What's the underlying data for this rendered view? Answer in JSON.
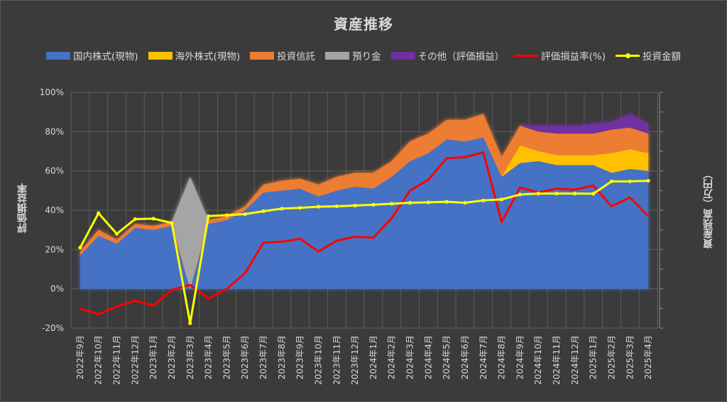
{
  "chart_data": {
    "type": "area",
    "title": "資産推移",
    "ylabel": "評価損益率",
    "y2label": "資産残高（万円）",
    "ylim": [
      -0.2,
      1.0
    ],
    "yticks": [
      "-20%",
      "0%",
      "20%",
      "40%",
      "60%",
      "80%",
      "100%"
    ],
    "categories": [
      "2022年9月",
      "2022年10月",
      "2022年11月",
      "2022年12月",
      "2023年1月",
      "2023年2月",
      "2023年3月",
      "2023年4月",
      "2023年5月",
      "2023年6月",
      "2023年7月",
      "2023年8月",
      "2023年9月",
      "2023年10月",
      "2023年11月",
      "2023年12月",
      "2024年1月",
      "2024年2月",
      "2024年3月",
      "2024年4月",
      "2024年5月",
      "2024年6月",
      "2024年7月",
      "2024年8月",
      "2024年9月",
      "2024年10月",
      "2024年11月",
      "2024年12月",
      "2025年1月",
      "2025年2月",
      "2025年3月",
      "2025年4月"
    ],
    "stacked_series": [
      {
        "name": "国内株式(現物)",
        "color": "#4472c4",
        "values": [
          0.17,
          0.27,
          0.23,
          0.31,
          0.3,
          0.32,
          0.0,
          0.33,
          0.35,
          0.4,
          0.49,
          0.5,
          0.51,
          0.47,
          0.5,
          0.52,
          0.51,
          0.57,
          0.65,
          0.69,
          0.76,
          0.75,
          0.77,
          0.57,
          0.64,
          0.65,
          0.63,
          0.63,
          0.63,
          0.59,
          0.61,
          0.6
        ]
      },
      {
        "name": "海外株式(現物)",
        "color": "#ffc000",
        "values": [
          0,
          0,
          0,
          0,
          0,
          0,
          0,
          0,
          0,
          0,
          0,
          0,
          0,
          0,
          0,
          0,
          0,
          0,
          0,
          0,
          0,
          0,
          0,
          0,
          0.09,
          0.05,
          0.05,
          0.05,
          0.05,
          0.1,
          0.1,
          0.09
        ]
      },
      {
        "name": "投資信託",
        "color": "#ed7d31",
        "values": [
          0.02,
          0.03,
          0.02,
          0.02,
          0.02,
          0.02,
          0.0,
          0.02,
          0.02,
          0.02,
          0.04,
          0.05,
          0.05,
          0.06,
          0.07,
          0.07,
          0.08,
          0.08,
          0.1,
          0.1,
          0.1,
          0.11,
          0.12,
          0.1,
          0.1,
          0.1,
          0.11,
          0.11,
          0.11,
          0.12,
          0.11,
          0.1
        ]
      },
      {
        "name": "預り金",
        "color": "#a5a5a5",
        "values": [
          0,
          0,
          0,
          0,
          0,
          0,
          0.57,
          0,
          0,
          0,
          0,
          0,
          0,
          0,
          0,
          0,
          0,
          0,
          0,
          0,
          0,
          0,
          0,
          0,
          0,
          0,
          0,
          0,
          0,
          0,
          0,
          0
        ]
      },
      {
        "name": "その他（評価損益）",
        "color": "#7030a0",
        "values": [
          0,
          0,
          0,
          0,
          0,
          0,
          0,
          0,
          0,
          0,
          0,
          0,
          0,
          0,
          0,
          0,
          0,
          0,
          0,
          0,
          0,
          0,
          0,
          0,
          0,
          0.03,
          0.04,
          0.04,
          0.05,
          0.04,
          0.07,
          0.05
        ]
      }
    ],
    "line_series": [
      {
        "name": "評価損益率(%)",
        "color": "#ff0000",
        "values": [
          -0.1,
          -0.13,
          -0.09,
          -0.06,
          -0.085,
          -0.005,
          0.02,
          -0.05,
          0.0,
          0.08,
          0.235,
          0.24,
          0.255,
          0.19,
          0.245,
          0.265,
          0.26,
          0.36,
          0.5,
          0.555,
          0.665,
          0.67,
          0.695,
          0.34,
          0.515,
          0.49,
          0.51,
          0.505,
          0.525,
          0.42,
          0.465,
          0.37
        ]
      },
      {
        "name": "投資金額",
        "color": "#ffff00",
        "values": [
          0.21,
          0.385,
          0.28,
          0.355,
          0.357,
          0.335,
          -0.175,
          0.37,
          0.375,
          0.38,
          0.395,
          0.408,
          0.412,
          0.418,
          0.42,
          0.424,
          0.428,
          0.433,
          0.438,
          0.44,
          0.443,
          0.438,
          0.45,
          0.455,
          0.48,
          0.485,
          0.485,
          0.485,
          0.484,
          0.547,
          0.547,
          0.55
        ]
      }
    ]
  }
}
